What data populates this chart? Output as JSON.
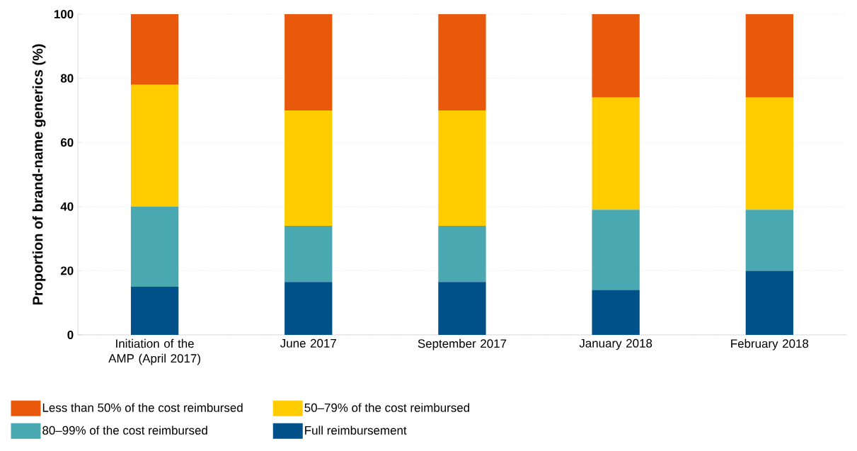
{
  "chart_data": {
    "type": "bar",
    "stacked": true,
    "ylabel": "Proportion of brand-name generics (%)",
    "categories": [
      "Initiation of the AMP (April 2017)",
      "June 2017",
      "September 2017",
      "January 2018",
      "February 2018"
    ],
    "series": [
      {
        "name": "Full reimbursement",
        "color": "#00508a",
        "values": [
          15,
          16.5,
          16.5,
          14,
          20
        ]
      },
      {
        "name": "80–99% of the cost reimbursed",
        "color": "#4aa9b0",
        "values": [
          25,
          17.5,
          17.5,
          25,
          19
        ]
      },
      {
        "name": "50–79% of the cost reimbursed",
        "color": "#ffcc00",
        "values": [
          38,
          36,
          36,
          35,
          35
        ]
      },
      {
        "name": "Less than 50% of the cost reimbursed",
        "color": "#e8590c",
        "values": [
          22,
          30,
          30,
          26,
          26
        ]
      }
    ],
    "ylim": [
      0,
      100
    ],
    "yticks": [
      0,
      20,
      40,
      60,
      80,
      100
    ],
    "grid": "y",
    "legend": "bottom"
  }
}
